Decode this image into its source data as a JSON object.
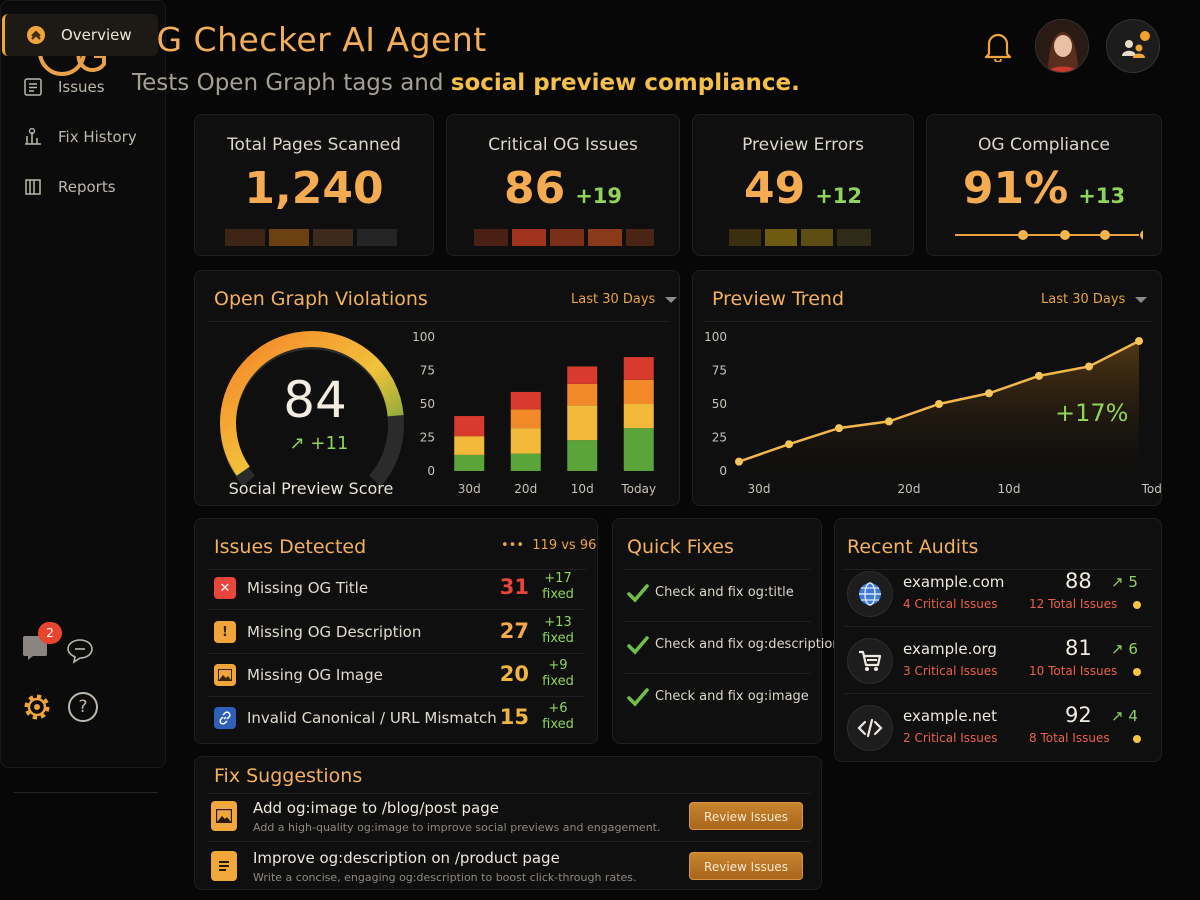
{
  "header": {
    "title": "OG Checker AI Agent",
    "subtitle_plain": "Tests Open Graph tags and ",
    "subtitle_highlight": "social preview compliance."
  },
  "sidebar": {
    "items": [
      {
        "label": "Overview",
        "icon": "overview-icon",
        "active": true
      },
      {
        "label": "Issues",
        "icon": "issues-icon"
      },
      {
        "label": "Fix History",
        "icon": "fix-history-icon"
      },
      {
        "label": "Reports",
        "icon": "reports-icon"
      }
    ],
    "notification_count": "2"
  },
  "kpis": [
    {
      "title": "Total Pages Scanned",
      "value": "1,240",
      "delta": ""
    },
    {
      "title": "Critical OG Issues",
      "value": "86",
      "delta": "+19"
    },
    {
      "title": "Preview Errors",
      "value": "49",
      "delta": "+12"
    },
    {
      "title": "OG Compliance",
      "value": "91%",
      "delta": "+13"
    }
  ],
  "violations": {
    "title": "Open Graph Violations",
    "range": "Last 30 Days",
    "score": "84",
    "score_delta": "+11",
    "score_label": "Social Preview Score"
  },
  "trend": {
    "title": "Preview Trend",
    "range": "Last 30 Days",
    "change": "+17%"
  },
  "chart_data": [
    {
      "type": "bar",
      "stacked": true,
      "categories": [
        "30d",
        "20d",
        "10d",
        "Today"
      ],
      "series": [
        {
          "color": "#5aa43a",
          "values": [
            12,
            13,
            23,
            32
          ]
        },
        {
          "color": "#f2b93b",
          "values": [
            14,
            19,
            26,
            18
          ]
        },
        {
          "color": "#f28a2a",
          "values": [
            0,
            14,
            16,
            18
          ]
        },
        {
          "color": "#d83a2e",
          "values": [
            15,
            13,
            13,
            17
          ]
        }
      ],
      "yticks": [
        0,
        25,
        50,
        75,
        100
      ],
      "ylim": [
        0,
        100
      ]
    },
    {
      "type": "line",
      "x": [
        "30d",
        "",
        "",
        "20d",
        "",
        "10d",
        "",
        "",
        "Today"
      ],
      "xticks": [
        "30d",
        "20d",
        "10d",
        "Today"
      ],
      "values": [
        7,
        20,
        32,
        37,
        50,
        58,
        71,
        78,
        97
      ],
      "yticks": [
        0,
        25,
        50,
        75,
        100
      ],
      "ylim": [
        0,
        100
      ]
    }
  ],
  "issues": {
    "title": "Issues Detected",
    "summary": "119 vs 96",
    "fixed_label": "fixed",
    "rows": [
      {
        "label": "Missing OG Title",
        "count": "31",
        "delta": "+17",
        "color": "#e8453c",
        "icon": "x-icon"
      },
      {
        "label": "Missing OG Description",
        "count": "27",
        "delta": "+13",
        "color": "#f0a53a",
        "icon": "warning-icon"
      },
      {
        "label": "Missing OG Image",
        "count": "20",
        "delta": "+9",
        "color": "#f0a53a",
        "icon": "image-icon"
      },
      {
        "label": "Invalid Canonical / URL Mismatch",
        "count": "15",
        "delta": "+6",
        "color": "#f0a53a",
        "icon": "link-icon"
      }
    ]
  },
  "quick_fixes": {
    "title": "Quick Fixes",
    "items": [
      "Check and fix og:title",
      "Check and fix og:description",
      "Check and fix og:image"
    ]
  },
  "audits": {
    "title": "Recent Audits",
    "rows": [
      {
        "domain": "example.com",
        "critical": "4 Critical Issues",
        "score": "88",
        "total": "12 Total Issues",
        "trend": "5",
        "icon": "globe-icon"
      },
      {
        "domain": "example.org",
        "critical": "3 Critical Issues",
        "score": "81",
        "total": "10 Total Issues",
        "trend": "6",
        "icon": "cart-icon"
      },
      {
        "domain": "example.net",
        "critical": "2 Critical Issues",
        "score": "92",
        "total": "8 Total Issues",
        "trend": "4",
        "icon": "code-icon"
      }
    ]
  },
  "fix_suggestions": {
    "title": "Fix Suggestions",
    "rows": [
      {
        "title": "Add og:image to /blog/post page",
        "desc": "Add a high-quality og:image to improve social previews and engagement.",
        "button": "Review Issues",
        "icon": "image-icon"
      },
      {
        "title": "Improve og:description on /product page",
        "desc": "Write a concise, engaging og:description to boost click-through rates.",
        "button": "Review Issues",
        "icon": "document-icon"
      }
    ]
  },
  "colors": {
    "accent": "#f2ad58",
    "positive": "#8fd35d",
    "critical": "#e8453c"
  }
}
